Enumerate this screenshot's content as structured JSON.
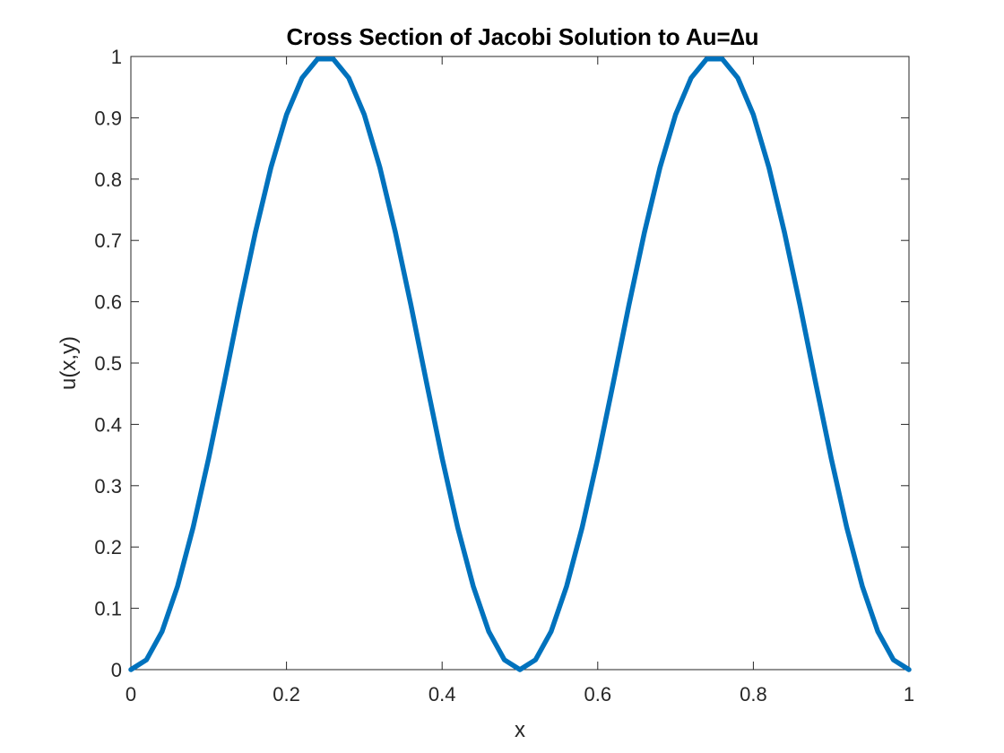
{
  "chart_data": {
    "type": "line",
    "title": "Cross Section of Jacobi Solution to Au=∆u",
    "xlabel": "x",
    "ylabel": "u(x,y)",
    "xlim": [
      0,
      1
    ],
    "ylim": [
      0,
      1
    ],
    "xticks": [
      "0",
      "0.2",
      "0.4",
      "0.6",
      "0.8",
      "1"
    ],
    "yticks": [
      "0",
      "0.1",
      "0.2",
      "0.3",
      "0.4",
      "0.5",
      "0.6",
      "0.7",
      "0.8",
      "0.9",
      "1"
    ],
    "grid": false,
    "box": true,
    "series": [
      {
        "color": "#0072BD",
        "x": [
          0,
          0.02,
          0.04,
          0.06,
          0.08,
          0.1,
          0.12,
          0.14,
          0.16,
          0.18,
          0.2,
          0.22,
          0.24,
          0.26,
          0.28,
          0.3,
          0.32,
          0.34,
          0.36,
          0.38,
          0.4,
          0.42,
          0.44,
          0.46,
          0.48,
          0.5,
          0.52,
          0.54,
          0.56,
          0.58,
          0.6,
          0.62,
          0.64,
          0.66,
          0.68,
          0.7,
          0.72,
          0.74,
          0.76,
          0.78,
          0.8,
          0.82,
          0.84,
          0.86,
          0.88,
          0.9,
          0.92,
          0.94,
          0.96,
          0.98,
          1
        ],
        "y": [
          0,
          0.016,
          0.062,
          0.136,
          0.232,
          0.345,
          0.468,
          0.594,
          0.713,
          0.819,
          0.905,
          0.965,
          0.996,
          0.996,
          0.965,
          0.905,
          0.819,
          0.713,
          0.594,
          0.468,
          0.345,
          0.232,
          0.136,
          0.062,
          0.016,
          0,
          0.016,
          0.062,
          0.136,
          0.232,
          0.345,
          0.468,
          0.594,
          0.713,
          0.819,
          0.905,
          0.965,
          0.996,
          0.996,
          0.965,
          0.905,
          0.819,
          0.713,
          0.594,
          0.468,
          0.345,
          0.232,
          0.136,
          0.062,
          0.016,
          0
        ]
      }
    ]
  }
}
